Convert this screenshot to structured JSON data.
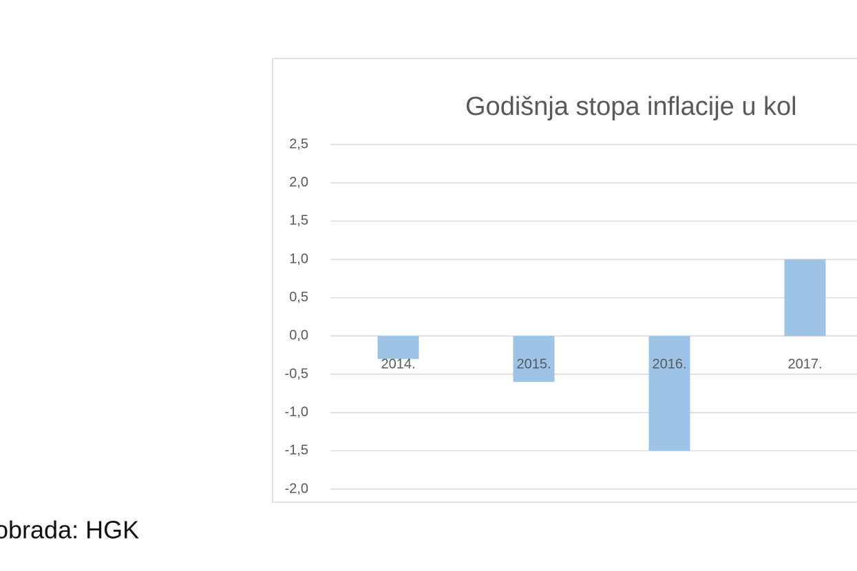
{
  "chart_data": {
    "type": "bar",
    "title": "Godišnja stopa inflacije u kol",
    "categories": [
      "2014.",
      "2015.",
      "2016.",
      "2017."
    ],
    "values": [
      -0.3,
      -0.6,
      -1.5,
      1.0
    ],
    "color": "#9dc3e6",
    "ylim": [
      -2,
      2.5
    ],
    "yticks": [
      {
        "value": -2,
        "label": "-2,0"
      },
      {
        "value": -1.5,
        "label": "-1,5"
      },
      {
        "value": -1,
        "label": "-1,0"
      },
      {
        "value": -0.5,
        "label": "-0,5"
      },
      {
        "value": 0,
        "label": "0,0"
      },
      {
        "value": 0.5,
        "label": "0,5"
      },
      {
        "value": 1,
        "label": "1,0"
      },
      {
        "value": 1.5,
        "label": "1,5"
      },
      {
        "value": 2,
        "label": "2,0"
      },
      {
        "value": 2.5,
        "label": "2,5"
      }
    ],
    "grid": true
  },
  "source": "obrada: HGK"
}
